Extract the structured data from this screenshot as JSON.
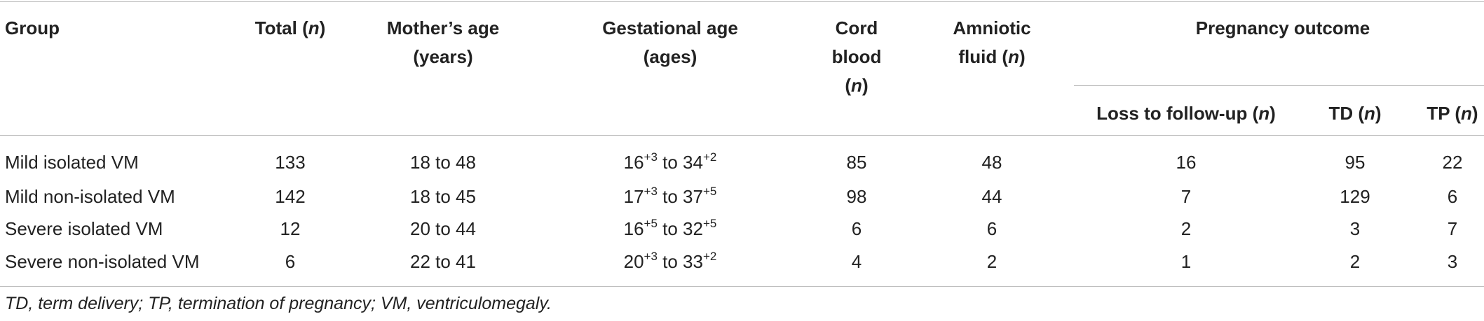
{
  "table": {
    "header": [
      "Group",
      [
        {
          "text": "Total ("
        },
        {
          "text": "n",
          "italic": true
        },
        {
          "text": ")"
        }
      ],
      "Mother’s age (years)",
      "Gestational age (ages)",
      [
        {
          "text": "Cord blood ("
        },
        {
          "text": "n",
          "italic": true
        },
        {
          "text": ")"
        }
      ],
      [
        {
          "text": "Amniotic fluid ("
        },
        {
          "text": "n",
          "italic": true
        },
        {
          "text": ")"
        }
      ]
    ],
    "group_header": "Pregnancy outcome",
    "subheader": [
      [
        {
          "text": "Loss to follow-up ("
        },
        {
          "text": "n",
          "italic": true
        },
        {
          "text": ")"
        }
      ],
      [
        {
          "text": "TD ("
        },
        {
          "text": "n",
          "italic": true
        },
        {
          "text": ")"
        }
      ],
      [
        {
          "text": "TP ("
        },
        {
          "text": "n",
          "italic": true
        },
        {
          "text": ")"
        }
      ]
    ],
    "rows": [
      [
        "Mild isolated VM",
        133,
        "18 to 48",
        [
          {
            "text": "16"
          },
          {
            "text": "+3",
            "sup": true
          },
          {
            "text": " to 34"
          },
          {
            "text": "+2",
            "sup": true
          }
        ],
        85,
        48,
        16,
        95,
        22
      ],
      [
        "Mild non-isolated VM",
        142,
        "18 to 45",
        [
          {
            "text": "17"
          },
          {
            "text": "+3",
            "sup": true
          },
          {
            "text": " to 37"
          },
          {
            "text": "+5",
            "sup": true
          }
        ],
        98,
        44,
        7,
        129,
        6
      ],
      [
        "Severe isolated VM",
        12,
        "20 to 44",
        [
          {
            "text": "16"
          },
          {
            "text": "+5",
            "sup": true
          },
          {
            "text": " to 32"
          },
          {
            "text": "+5",
            "sup": true
          }
        ],
        6,
        6,
        2,
        3,
        7
      ],
      [
        "Severe non-isolated VM",
        6,
        "22 to 41",
        [
          {
            "text": "20"
          },
          {
            "text": "+3",
            "sup": true
          },
          {
            "text": " to 33"
          },
          {
            "text": "+2",
            "sup": true
          }
        ],
        4,
        2,
        1,
        2,
        3
      ]
    ]
  },
  "footnote": "TD, term delivery; TP, termination of pregnancy; VM, ventriculomegaly."
}
